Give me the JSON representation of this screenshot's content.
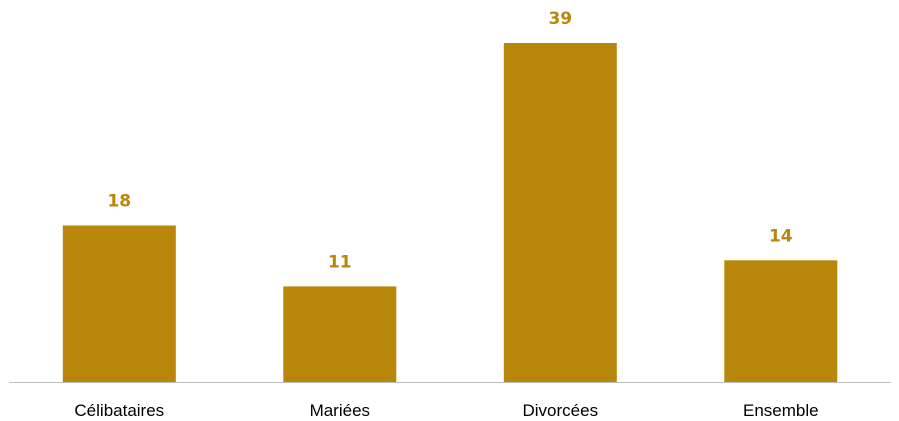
{
  "chart_data": {
    "type": "bar",
    "categories": [
      "Célibataires",
      "Mariées",
      "Divorcées",
      "Ensemble"
    ],
    "values": [
      18,
      11,
      39,
      14
    ],
    "title": "",
    "xlabel": "",
    "ylabel": "",
    "ylim": [
      0,
      39
    ],
    "grid": false,
    "data_labels": true,
    "colors": {
      "bar": "#B8860B",
      "value_label": "#B8860B",
      "axis": "#BFBFBF",
      "category_label": "#000000"
    }
  }
}
